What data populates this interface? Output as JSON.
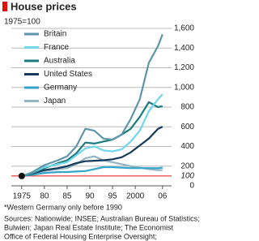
{
  "chart_data": {
    "type": "line",
    "title": "House prices",
    "subtitle": "1975=100",
    "x": [
      1975,
      1977,
      1980,
      1983,
      1985,
      1987,
      1989,
      1991,
      1993,
      1995,
      1997,
      1999,
      2001,
      2003,
      2005,
      2006
    ],
    "series": [
      {
        "name": "Britain",
        "color": "#5e95ab",
        "values": [
          100,
          130,
          210,
          260,
          300,
          400,
          580,
          560,
          480,
          470,
          520,
          680,
          880,
          1250,
          1420,
          1540
        ]
      },
      {
        "name": "France",
        "color": "#6fd6ec",
        "values": [
          100,
          130,
          190,
          220,
          240,
          310,
          380,
          400,
          360,
          350,
          370,
          450,
          560,
          760,
          880,
          930
        ]
      },
      {
        "name": "Australia",
        "color": "#1b7b7c",
        "values": [
          100,
          120,
          180,
          230,
          260,
          330,
          440,
          430,
          450,
          470,
          520,
          580,
          700,
          850,
          800,
          810
        ]
      },
      {
        "name": "United States",
        "color": "#16385a",
        "values": [
          100,
          120,
          160,
          180,
          200,
          230,
          250,
          255,
          260,
          270,
          290,
          340,
          410,
          480,
          580,
          600
        ]
      },
      {
        "name": "Germany",
        "color": "#33a6cc",
        "values": [
          100,
          110,
          130,
          140,
          140,
          145,
          150,
          170,
          190,
          190,
          185,
          180,
          180,
          180,
          180,
          185
        ]
      },
      {
        "name": "Japan",
        "color": "#93b4c3",
        "values": [
          100,
          120,
          150,
          170,
          180,
          220,
          280,
          300,
          260,
          240,
          220,
          200,
          185,
          170,
          160,
          160
        ]
      }
    ],
    "xlim": [
      1972,
      2008
    ],
    "xticks": [
      1975,
      {
        "value": 1980,
        "label": "80"
      },
      {
        "value": 1985,
        "label": "85"
      },
      {
        "value": 1990,
        "label": "90"
      },
      {
        "value": 1995,
        "label": "95"
      },
      2000,
      {
        "value": 2006,
        "label": "06"
      }
    ],
    "ylim": [
      0,
      1600
    ],
    "yticks": [
      0,
      200,
      400,
      600,
      800,
      {
        "value": 1000,
        "label": "1,000"
      },
      {
        "value": 1200,
        "label": "1,200"
      },
      {
        "value": 1400,
        "label": "1,400"
      },
      {
        "value": 1600,
        "label": "1,600"
      }
    ],
    "reference_line": 100,
    "reference_color": "#e3120b",
    "footnote": "*Western Germany only before 1990",
    "sources": [
      "Sources: Nationwide; INSEE; Australian Bureau of Statistics;",
      "Bulwien; Japan Real Estate Institute; The Economist",
      "Office of Federal Housing Enterprise Oversight;"
    ]
  }
}
